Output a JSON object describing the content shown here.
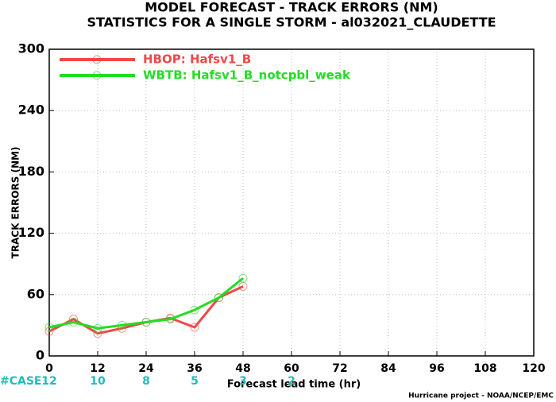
{
  "chart_data": {
    "type": "line",
    "title": "MODEL FORECAST - TRACK ERRORS (NM)",
    "subtitle": "STATISTICS FOR A SINGLE STORM - al032021_CLAUDETTE",
    "x_label": "Forecast lead time (hr)",
    "y_label": "TRACK ERRORS (NM)",
    "x": [
      0,
      6,
      12,
      18,
      24,
      30,
      36,
      42,
      48
    ],
    "series": [
      {
        "name": "HBOP: Hafsv1_B",
        "color": "#f04848",
        "values": [
          24,
          36,
          22,
          27,
          33,
          37,
          28,
          57,
          68
        ]
      },
      {
        "name": "WBTB: Hafsv1_B_notcpbl_weak",
        "color": "#22dd22",
        "values": [
          28,
          33,
          27,
          30,
          33,
          36,
          45,
          57,
          76
        ]
      }
    ],
    "xlim": [
      0,
      120
    ],
    "xticks": [
      0,
      12,
      24,
      36,
      48,
      60,
      72,
      84,
      96,
      108,
      120
    ],
    "ylim": [
      0,
      300
    ],
    "yticks": [
      0,
      60,
      120,
      180,
      240,
      300
    ],
    "grid": true,
    "legend": "upper left",
    "case_counts": {
      "label": "#CASE",
      "color": "#22bbbb",
      "x": [
        0,
        12,
        24,
        36,
        48,
        60
      ],
      "values": [
        12,
        10,
        8,
        5,
        3,
        2
      ]
    },
    "footer": "Hurricane project - NOAA/NCEP/EMC"
  }
}
